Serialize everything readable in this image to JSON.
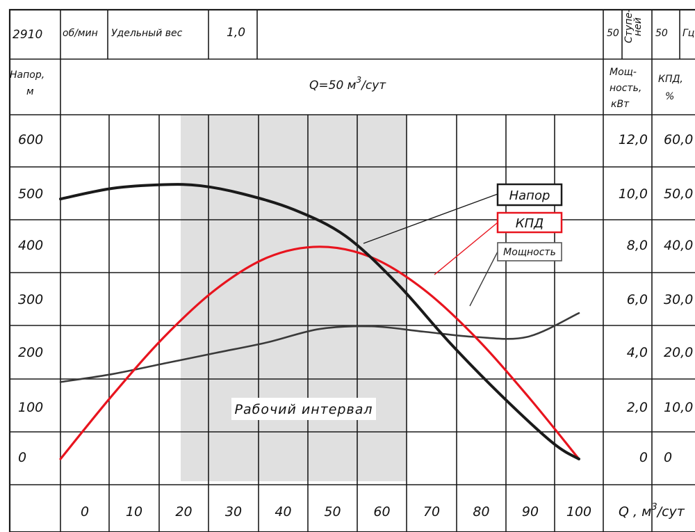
{
  "header": {
    "speed_value": "2910",
    "speed_unit": "об/мин",
    "specific_weight_label": "Удельный вес",
    "specific_weight_value": "1,0",
    "stages_count": "50",
    "stages_label_1": "Ступе-",
    "stages_label_2": "ней",
    "hz_value": "50",
    "hz_label": "Гц",
    "head_label_1": "Напор,",
    "head_label_2": "м",
    "nominal_q": "Q=50 м",
    "nominal_q_sup": "3",
    "nominal_q_unit": "/сут",
    "power_label_1": "Мощ-",
    "power_label_2": "ность,",
    "power_label_3": "кВт",
    "eff_label_1": "КПД,",
    "eff_label_2": "%",
    "x_axis_label": "Q , м",
    "x_axis_label_sup": "3",
    "x_axis_label_unit": "/сут"
  },
  "chart_data": {
    "type": "line",
    "xlabel": "Q , м3/сут",
    "ylabel": "Напор, м",
    "x_ticks": [
      "0",
      "10",
      "20",
      "30",
      "40",
      "50",
      "60",
      "70",
      "80",
      "90",
      "100"
    ],
    "y_ticks_head": [
      "600",
      "500",
      "400",
      "300",
      "200",
      "100",
      "0"
    ],
    "y_ticks_power": [
      "12,0",
      "10,0",
      "8,0",
      "6,0",
      "4,0",
      "2,0",
      "0"
    ],
    "y_ticks_eff": [
      "60,0",
      "50,0",
      "40,0",
      "30,0",
      "20,0",
      "10,0",
      "0"
    ],
    "xlim": [
      0,
      100
    ],
    "ylim_head": [
      0,
      600
    ],
    "ylim_power": [
      0,
      12
    ],
    "ylim_eff": [
      0,
      60
    ],
    "working_interval": {
      "label": "Рабочий интервал",
      "x_range": [
        23,
        67
      ]
    },
    "series": [
      {
        "name": "Напор",
        "axis": "head",
        "color": "#1a1a1a",
        "x": [
          0,
          10,
          20,
          27,
          35,
          45,
          55,
          65,
          75,
          85,
          95,
          100
        ],
        "y": [
          490,
          510,
          517,
          515,
          500,
          470,
          420,
          330,
          220,
          120,
          30,
          0
        ]
      },
      {
        "name": "КПД",
        "axis": "eff",
        "color": "#e8141e",
        "x": [
          0,
          10,
          20,
          30,
          40,
          50,
          60,
          70,
          80,
          90,
          100
        ],
        "y": [
          0,
          12,
          23,
          32,
          38,
          40,
          38,
          32,
          23,
          12,
          0
        ]
      },
      {
        "name": "Мощность",
        "axis": "power",
        "color": "#3a3a3a",
        "x": [
          0,
          10,
          20,
          30,
          40,
          50,
          60,
          70,
          80,
          90,
          100
        ],
        "y": [
          2.9,
          3.2,
          3.6,
          4.0,
          4.4,
          4.9,
          5.0,
          4.8,
          4.6,
          4.6,
          5.5
        ]
      }
    ]
  },
  "colors": {
    "interval_fill": "#e0e0e0",
    "grid": "#1a1a1a",
    "head_line": "#1a1a1a",
    "eff_line": "#e8141e",
    "power_line": "#3a3a3a"
  }
}
